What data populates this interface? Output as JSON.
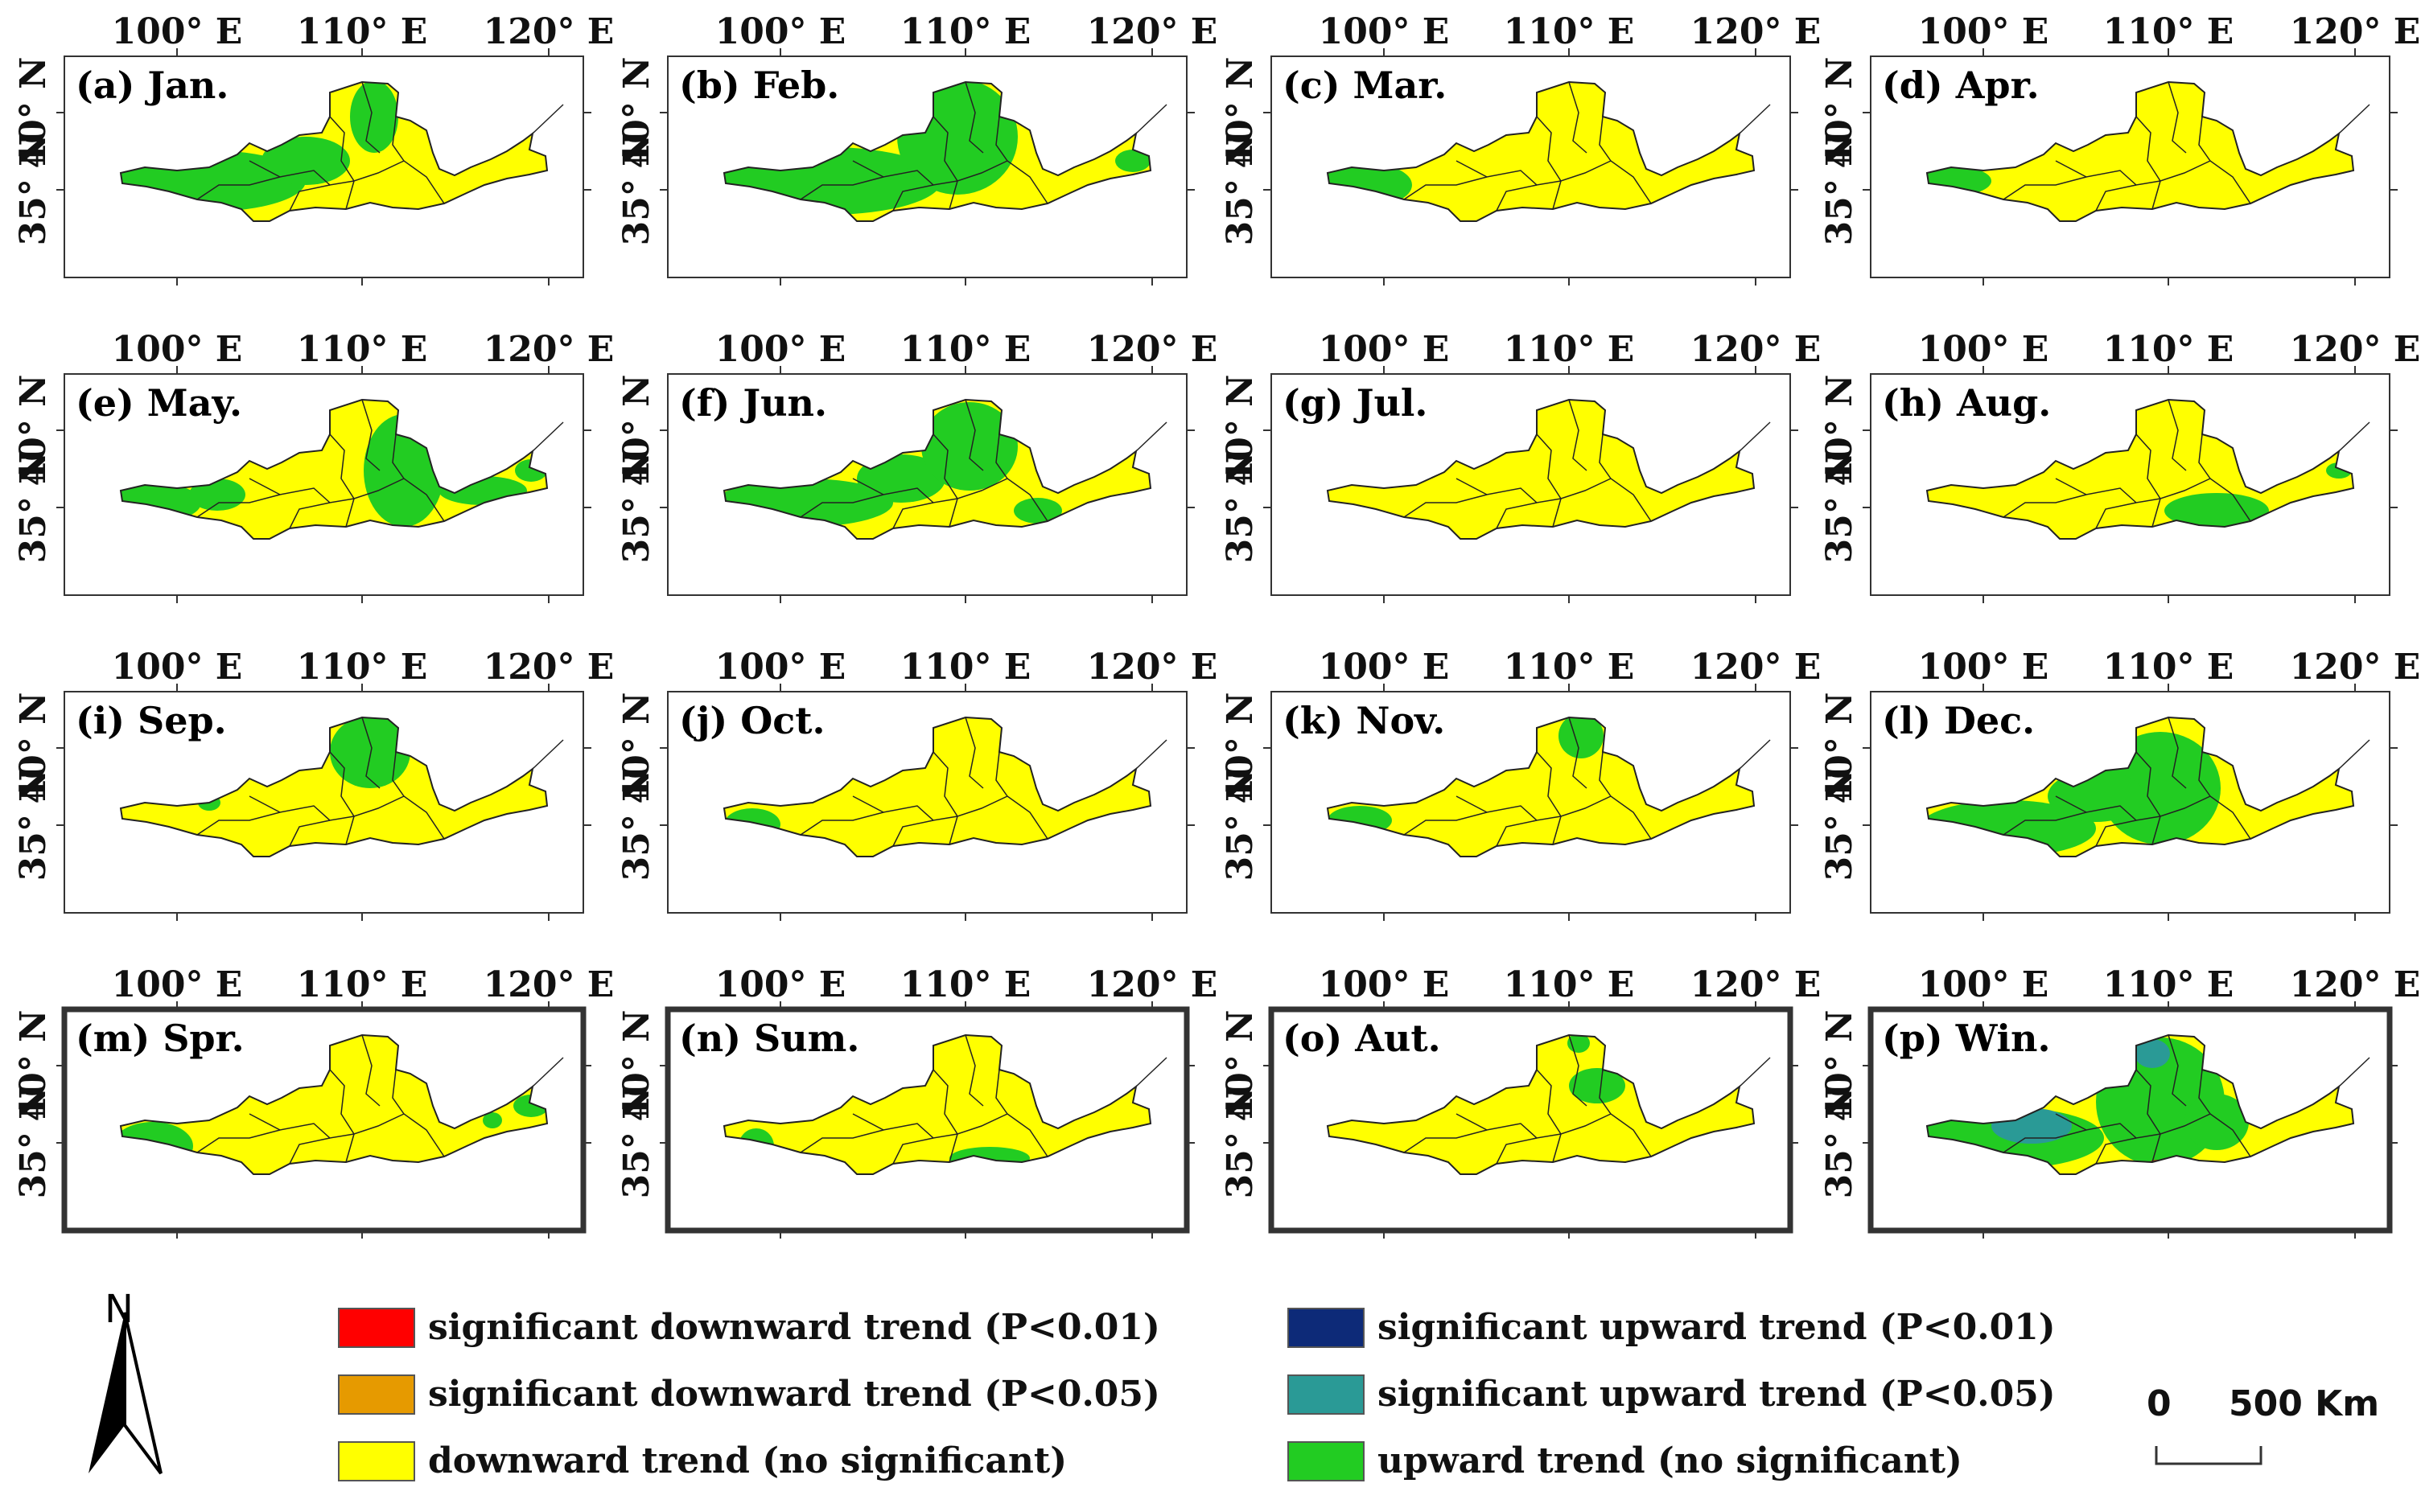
{
  "axes": {
    "lon_labels": [
      "100° E",
      "110° E",
      "120° E"
    ],
    "lat_labels": [
      "40° N",
      "35° N"
    ]
  },
  "panels": [
    {
      "label": "(a) Jan.",
      "boxed": false
    },
    {
      "label": "(b) Feb.",
      "boxed": false
    },
    {
      "label": "(c) Mar.",
      "boxed": false
    },
    {
      "label": "(d) Apr.",
      "boxed": false
    },
    {
      "label": "(e) May.",
      "boxed": false
    },
    {
      "label": "(f) Jun.",
      "boxed": false
    },
    {
      "label": "(g) Jul.",
      "boxed": false
    },
    {
      "label": "(h) Aug.",
      "boxed": false
    },
    {
      "label": "(i) Sep.",
      "boxed": false
    },
    {
      "label": "(j) Oct.",
      "boxed": false
    },
    {
      "label": "(k) Nov.",
      "boxed": false
    },
    {
      "label": "(l) Dec.",
      "boxed": false
    },
    {
      "label": "(m) Spr.",
      "boxed": true
    },
    {
      "label": "(n) Sum.",
      "boxed": true
    },
    {
      "label": "(o) Aut.",
      "boxed": true
    },
    {
      "label": "(p) Win.",
      "boxed": true
    }
  ],
  "legend": {
    "items": [
      {
        "text": "significant downward trend (P<0.01)",
        "color": "#ff0000"
      },
      {
        "text": "significant downward trend (P<0.05)",
        "color": "#e69a00"
      },
      {
        "text": "downward trend (no significant)",
        "color": "#ffff00"
      },
      {
        "text": "significant upward trend (P<0.01)",
        "color": "#0d2a78"
      },
      {
        "text": "significant upward trend (P<0.05)",
        "color": "#2a9a96"
      },
      {
        "text": "upward trend (no significant)",
        "color": "#22cc22"
      }
    ]
  },
  "north_arrow": {
    "label": "N"
  },
  "scale_bar": {
    "zero": "0",
    "distance": "500 Km"
  },
  "colors": {
    "down_nonsig": "#ffff00",
    "up_nonsig": "#22cc22",
    "up_sig05": "#2a9a96",
    "down_sig01": "#ff0000",
    "outline": "#222222"
  }
}
